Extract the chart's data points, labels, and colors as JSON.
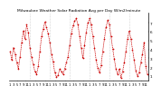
{
  "title": "Milwaukee Weather Solar Radiation Avg per Day W/m2/minute",
  "values": [
    3.8,
    2.8,
    4.2,
    3.5,
    2.5,
    1.8,
    3.2,
    4.8,
    6.1,
    5.2,
    6.8,
    5.9,
    4.2,
    3.1,
    2.3,
    1.5,
    1.2,
    2.1,
    3.8,
    5.5,
    6.3,
    7.1,
    6.5,
    5.8,
    4.8,
    3.5,
    2.6,
    1.4,
    0.9,
    1.1,
    1.8,
    1.5,
    1.2,
    1.8,
    2.5,
    3.2,
    4.5,
    5.8,
    6.7,
    7.2,
    7.5,
    6.8,
    5.5,
    4.2,
    3.0,
    4.5,
    5.9,
    7.0,
    7.5,
    6.8,
    5.5,
    4.2,
    2.8,
    1.9,
    1.4,
    2.2,
    3.8,
    5.2,
    6.5,
    7.3,
    6.8,
    5.5,
    4.1,
    2.9,
    1.8,
    1.2,
    1.8,
    0.8,
    1.5,
    2.5,
    3.8,
    5.2,
    6.1,
    5.2,
    4.0,
    2.8,
    1.6,
    1.0,
    1.4,
    2.5,
    3.5,
    4.8,
    2.1,
    1.2
  ],
  "line_color": "#cc0000",
  "marker_color": "#cc0000",
  "grid_color": "#999999",
  "bg_color": "#ffffff",
  "ylim": [
    0.5,
    8.2
  ],
  "yticks": [
    1,
    2,
    3,
    4,
    5,
    6,
    7
  ],
  "tick_label_fontsize": 3.0,
  "title_fontsize": 3.2,
  "linewidth": 0.5,
  "markersize": 0.9,
  "xgrid_positions": [
    12,
    24,
    36,
    48,
    60,
    72
  ]
}
